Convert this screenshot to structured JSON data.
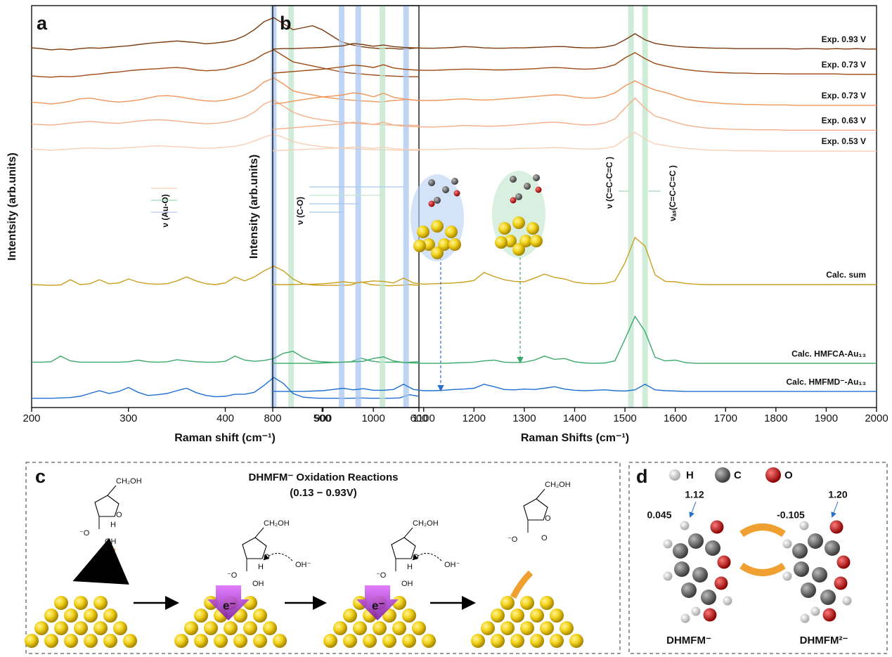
{
  "chart_data": [
    {
      "type": "line",
      "panel": "a",
      "ylabel": "Intentsity (arb.units)",
      "xlabel": "Raman shift (cm⁻¹)",
      "xlim": [
        200,
        600
      ],
      "xticks": [
        200,
        300,
        400,
        500,
        600
      ],
      "ylim": [
        0,
        100
      ],
      "annotations": [
        "ν (Au-O)"
      ],
      "bands": [
        {
          "x": 450,
          "color": "#a9c7f0"
        },
        {
          "x": 468,
          "color": "#bfe6cc"
        }
      ],
      "x": [
        200,
        210,
        220,
        230,
        240,
        250,
        260,
        270,
        280,
        290,
        300,
        310,
        320,
        330,
        340,
        350,
        360,
        370,
        380,
        390,
        400,
        410,
        420,
        430,
        440,
        450,
        460,
        470,
        480,
        490,
        500,
        510,
        520,
        530,
        540,
        550,
        560,
        570,
        580,
        590,
        600
      ],
      "series": [
        {
          "color": "#7a3a0e",
          "values": [
            89.5,
            89.3,
            89,
            89.2,
            89,
            89.3,
            89.5,
            89.4,
            89.6,
            89.8,
            90,
            90.3,
            90.6,
            90.8,
            91,
            91.2,
            91,
            90.8,
            90.5,
            90.7,
            91,
            91.5,
            92.5,
            94,
            96,
            97,
            95.5,
            94,
            94.5,
            95,
            94,
            92.5,
            91,
            90.3,
            89.8,
            89.5,
            89.3,
            89.4,
            89.2,
            89.3,
            89.5
          ]
        },
        {
          "color": "#9e4a14",
          "values": [
            82.5,
            82.3,
            82.2,
            82.4,
            82.3,
            82.5,
            82.8,
            83,
            83.3,
            83.5,
            83.8,
            84,
            84.2,
            84.3,
            84.5,
            84.6,
            84.4,
            84,
            83.8,
            83.9,
            84.2,
            84.8,
            85.5,
            86.5,
            88,
            89,
            87.5,
            86,
            85.5,
            85,
            84.5,
            84,
            83.5,
            83.2,
            83,
            82.8,
            82.6,
            82.5,
            82.4,
            82.3,
            82.3
          ]
        },
        {
          "color": "#f0955a",
          "values": [
            76,
            75.8,
            75.5,
            75.8,
            76.2,
            76.8,
            77,
            76.6,
            76.2,
            76,
            76.2,
            76.5,
            77,
            77.5,
            77.6,
            77.4,
            77,
            76.6,
            76.3,
            76.2,
            76.5,
            77,
            77.8,
            79,
            81,
            82,
            80.5,
            78.8,
            78.2,
            77.8,
            77.3,
            77,
            76.7,
            76.5,
            76.3,
            76.2,
            76,
            76.3,
            76.5,
            76.6,
            76.4
          ]
        },
        {
          "color": "#f5b08a",
          "values": [
            70.5,
            70.4,
            70.3,
            70.5,
            70.8,
            71,
            71.2,
            71,
            70.8,
            70.7,
            71,
            71.3,
            71.5,
            71.6,
            71.5,
            71.3,
            71,
            70.8,
            70.6,
            70.7,
            71,
            71.5,
            72.2,
            73.5,
            75.5,
            76.5,
            75,
            73.5,
            72.6,
            72,
            71.6,
            71.3,
            71,
            70.8,
            70.6,
            70.5,
            70.4,
            70.3,
            70.3,
            70.2,
            70.2
          ]
        },
        {
          "color": "#f8cfb5",
          "values": [
            64.3,
            64.2,
            64,
            64.2,
            64.3,
            64.5,
            64.6,
            64.5,
            64.4,
            64.5,
            64.7,
            64.8,
            65,
            65.1,
            65,
            64.9,
            64.8,
            64.6,
            64.5,
            64.6,
            64.8,
            65,
            65.5,
            66.3,
            67.3,
            68,
            67.2,
            66.2,
            65.6,
            65.2,
            64.9,
            64.7,
            64.5,
            64.4,
            64.3,
            64.2,
            64.1,
            64.1,
            64,
            64,
            64
          ]
        },
        {
          "color": "#c9a020",
          "values": [
            30.6,
            30.5,
            30.4,
            30.5,
            31.8,
            30.6,
            30.8,
            31.8,
            30.8,
            31,
            32,
            31.2,
            30.8,
            30.7,
            30.8,
            31.5,
            32.5,
            31.5,
            30.8,
            30.6,
            31,
            32.5,
            31.5,
            32.5,
            34,
            35.2,
            34,
            32,
            30.8,
            30.5,
            30.4,
            30.4,
            30.4,
            30.5,
            31.3,
            30.6,
            30.4,
            30.3,
            30.4,
            30.6,
            30.4
          ]
        },
        {
          "color": "#3aaa6a",
          "values": [
            11.3,
            11.3,
            11.4,
            12.8,
            11.6,
            11.3,
            11.3,
            11.3,
            11.3,
            11.3,
            11.4,
            11.8,
            11.4,
            11.3,
            11.4,
            11.9,
            11.6,
            11.4,
            11.3,
            11.3,
            11.5,
            12.8,
            11.8,
            11.5,
            11.7,
            12.2,
            13.5,
            14,
            12.5,
            11.6,
            11.4,
            11.3,
            11.3,
            11.4,
            12.3,
            11.6,
            11.3,
            11.3,
            11.3,
            11.3,
            11.4
          ]
        },
        {
          "color": "#1f6fd1",
          "values": [
            2.3,
            2.3,
            2.3,
            2.4,
            2.5,
            2.8,
            3.5,
            4.2,
            3.5,
            4,
            5,
            3.8,
            3,
            3.2,
            3.5,
            4.2,
            4.8,
            3.7,
            3,
            2.7,
            2.8,
            3.3,
            3.3,
            3.8,
            5.5,
            7.5,
            6,
            3.5,
            2.6,
            2.4,
            2.3,
            2.3,
            2.3,
            2.3,
            2.4,
            2.3,
            2.3,
            2.3,
            2.4,
            3.2,
            2.8
          ]
        }
      ]
    },
    {
      "type": "line",
      "panel": "b",
      "ylabel": "Intensity (arb.units)",
      "xlabel": "Raman Shifts (cm⁻¹)",
      "xlim": [
        800,
        2000
      ],
      "xticks": [
        800,
        900,
        1000,
        1100,
        1200,
        1300,
        1400,
        1500,
        1600,
        1700,
        1800,
        1900,
        2000
      ],
      "ylim": [
        0,
        100
      ],
      "annotations": [
        "ν (C-O)",
        "ν (C=C-C=C )",
        "νₐₛ(C=C-C=C )"
      ],
      "bands": [
        {
          "x": 937,
          "color": "#a9c7f0"
        },
        {
          "x": 970,
          "color": "#a9c7f0"
        },
        {
          "x": 1018,
          "color": "#bfe6cc"
        },
        {
          "x": 1065,
          "color": "#a9c7f0"
        },
        {
          "x": 1512,
          "color": "#bfe6cc"
        },
        {
          "x": 1540,
          "color": "#bfe6cc"
        }
      ],
      "x": [
        800,
        820,
        840,
        860,
        880,
        900,
        920,
        940,
        960,
        980,
        1000,
        1020,
        1040,
        1060,
        1080,
        1100,
        1120,
        1140,
        1160,
        1180,
        1200,
        1220,
        1240,
        1260,
        1280,
        1300,
        1320,
        1340,
        1360,
        1380,
        1400,
        1420,
        1440,
        1460,
        1480,
        1500,
        1520,
        1540,
        1560,
        1580,
        1600,
        1620,
        1640,
        1660,
        1680,
        1700,
        1720,
        1740,
        1760,
        1780,
        1800,
        1820,
        1840,
        1860,
        1880,
        1900,
        1920,
        1940,
        1960,
        1980,
        2000
      ],
      "series": [
        {
          "name": "Exp. 0.93 V",
          "color": "#7a3a0e",
          "values": [
            89.2,
            89.3,
            89.3,
            89.4,
            89.5,
            89.6,
            89.8,
            90,
            90.6,
            90.3,
            89.9,
            90.2,
            89.8,
            89.6,
            89.5,
            89.4,
            89.4,
            89.5,
            89.6,
            89.8,
            89.7,
            89.5,
            89.4,
            89.4,
            89.5,
            89.5,
            89.6,
            89.7,
            89.8,
            89.8,
            89.6,
            89.5,
            89.5,
            89.7,
            90.2,
            91.5,
            93,
            91.5,
            90.6,
            90.2,
            89.9,
            89.7,
            89.6,
            89.5,
            89.4,
            89.4,
            89.3,
            89.3,
            89.3,
            89.3,
            89.3,
            89.3,
            89.2,
            89.3,
            89.3,
            89.2,
            89.3,
            89.2,
            89.3,
            89.2,
            89.2
          ]
        },
        {
          "name": "Exp. 0.73 V",
          "color": "#9e4a14",
          "values": [
            83.2,
            83.4,
            83.6,
            83.8,
            84,
            84.2,
            84.5,
            84.8,
            85.2,
            85,
            84.6,
            85.3,
            84.5,
            84.2,
            84,
            83.9,
            83.9,
            84,
            84.1,
            84.2,
            84.2,
            84.1,
            84,
            84,
            84.1,
            84.2,
            84.3,
            84.5,
            84.6,
            84.5,
            84.3,
            84.2,
            84.3,
            84.6,
            85.3,
            87,
            88.3,
            86.8,
            85.6,
            85,
            84.5,
            84.1,
            83.8,
            83.6,
            83.4,
            83.3,
            83.2,
            83.2,
            83.1,
            83.1,
            83.1,
            83,
            83,
            83,
            83,
            83,
            83,
            82.9,
            82.9,
            82.9,
            82.9
          ]
        },
        {
          "name": "Exp. 0.73 V",
          "color": "#f0955a",
          "values": [
            75.5,
            75.8,
            76.2,
            76.6,
            77,
            77.3,
            77.5,
            77.8,
            78.3,
            78,
            77.3,
            78.2,
            77.2,
            76.8,
            76.5,
            76.4,
            76.4,
            76.5,
            76.7,
            76.8,
            76.6,
            76.5,
            76.6,
            76.8,
            77,
            77.2,
            77.4,
            77.6,
            77.8,
            77.7,
            77.3,
            77,
            77,
            77.4,
            78.3,
            80,
            81.3,
            80,
            79,
            78.4,
            77.6,
            76.8,
            76.3,
            76,
            75.8,
            75.6,
            75.5,
            75.4,
            75.4,
            75.3,
            75.3,
            75.3,
            75.2,
            75.2,
            75.2,
            75.2,
            75.2,
            75.2,
            75.2,
            75.2,
            75.2
          ]
        },
        {
          "name": "Exp. 0.63 V",
          "color": "#f5b08a",
          "values": [
            69.2,
            69.4,
            69.6,
            69.8,
            70,
            70.2,
            70.4,
            70.6,
            71,
            70.8,
            70.4,
            71,
            70.3,
            70,
            69.9,
            69.8,
            69.8,
            69.9,
            70,
            70.2,
            70.1,
            70,
            70,
            70.1,
            70.3,
            70.5,
            70.7,
            70.9,
            71,
            70.8,
            70.5,
            70.3,
            70.4,
            70.8,
            71.8,
            74.5,
            77,
            74.5,
            72.5,
            71.8,
            71,
            70.3,
            69.9,
            69.6,
            69.4,
            69.3,
            69.2,
            69.2,
            69.1,
            69.1,
            69.1,
            69,
            69,
            69,
            69,
            69,
            69,
            69,
            69,
            69,
            69
          ]
        },
        {
          "name": "Exp. 0.53 V",
          "color": "#f8cfb5",
          "values": [
            63.9,
            64,
            64.1,
            64.2,
            64.3,
            64.4,
            64.5,
            64.6,
            64.8,
            64.7,
            64.5,
            64.8,
            64.4,
            64.3,
            64.2,
            64.2,
            64.2,
            64.2,
            64.3,
            64.4,
            64.4,
            64.3,
            64.3,
            64.3,
            64.4,
            64.5,
            64.5,
            64.6,
            64.7,
            64.6,
            64.4,
            64.3,
            64.3,
            64.5,
            65,
            66.8,
            68.5,
            66.8,
            65.6,
            65.2,
            64.8,
            64.5,
            64.3,
            64.1,
            64,
            64,
            63.9,
            63.9,
            63.9,
            63.8,
            63.8,
            63.8,
            63.8,
            63.8,
            63.8,
            63.8,
            63.8,
            63.8,
            63.8,
            63.8,
            63.8
          ]
        },
        {
          "name": "Calc. sum",
          "color": "#c9a020",
          "values": [
            30.6,
            30.6,
            30.6,
            30.7,
            30.7,
            30.8,
            31,
            31.3,
            31,
            31.2,
            31.5,
            31.4,
            31,
            32.2,
            31,
            30.7,
            30.8,
            30.9,
            31,
            31.2,
            31.6,
            33.6,
            32.6,
            31.8,
            31.4,
            31.3,
            32.2,
            33.2,
            32.4,
            32,
            31.2,
            30.9,
            30.8,
            30.9,
            31.5,
            36,
            42.3,
            40.2,
            33,
            31.4,
            31.3,
            30.9,
            30.7,
            30.6,
            30.6,
            30.6,
            30.6,
            30.6,
            30.6,
            30.6,
            30.6,
            30.6,
            30.6,
            30.6,
            30.6,
            30.6,
            30.6,
            30.6,
            30.6,
            30.6,
            30.6
          ]
        },
        {
          "name": "Calc. HMFCA-Au₁₃",
          "color": "#3aaa6a",
          "values": [
            11,
            11,
            11,
            11,
            11,
            11.1,
            11.2,
            11.3,
            11.4,
            11.5,
            12.2,
            12.6,
            11.6,
            11.2,
            11.1,
            11,
            11,
            11,
            11.1,
            11.2,
            11.3,
            11.6,
            11.8,
            11.3,
            11.2,
            11.3,
            11.8,
            12.8,
            12,
            12.2,
            11.4,
            11.1,
            11,
            11.1,
            11.6,
            17,
            22.7,
            18.9,
            12.5,
            11.6,
            11.8,
            11.2,
            11,
            11,
            11,
            11,
            11,
            11,
            11,
            11,
            11,
            11,
            11,
            11,
            11,
            11,
            11,
            11,
            11,
            11,
            11
          ]
        },
        {
          "name": "Calc. HMFMD⁻-Au₁₃",
          "color": "#1f6fd1",
          "values": [
            4,
            4,
            4,
            4,
            4.1,
            4.2,
            4.5,
            4.8,
            4.4,
            4.7,
            4.3,
            4.3,
            4.5,
            5.8,
            4.5,
            4.2,
            4.2,
            4.3,
            4.5,
            4.6,
            4.8,
            5.8,
            5.2,
            4.5,
            4.4,
            4.6,
            4.5,
            4.8,
            5.2,
            4.6,
            4.3,
            4.2,
            4.3,
            4.4,
            4.2,
            4.1,
            4.4,
            5.8,
            4.4,
            4.2,
            4.1,
            4,
            4,
            4,
            4,
            4,
            4,
            4,
            4,
            4,
            4,
            4,
            4,
            4,
            4,
            4,
            4,
            4,
            4,
            4,
            4
          ]
        }
      ]
    }
  ],
  "diagram_c": {
    "label": "c",
    "title": "DHMFM⁻ Oxidation Reactions",
    "subtitle": "(0.13 − 0.93V)",
    "substituent": "CH₂OH",
    "ring_atom": "O",
    "alkoxide": "⁻O",
    "hydrogen": "H",
    "hydroxyl": "OH",
    "hydroxide": "OH⁻",
    "electron": "e⁻"
  },
  "diagram_d": {
    "label": "d",
    "legend": [
      "H",
      "C",
      "O"
    ],
    "bond_left": "1.12",
    "bond_right": "1.20",
    "charge_left": "0.045",
    "charge_right": "-0.105",
    "name_left": "DHMFM⁻",
    "name_right": "DHMFM²⁻"
  }
}
